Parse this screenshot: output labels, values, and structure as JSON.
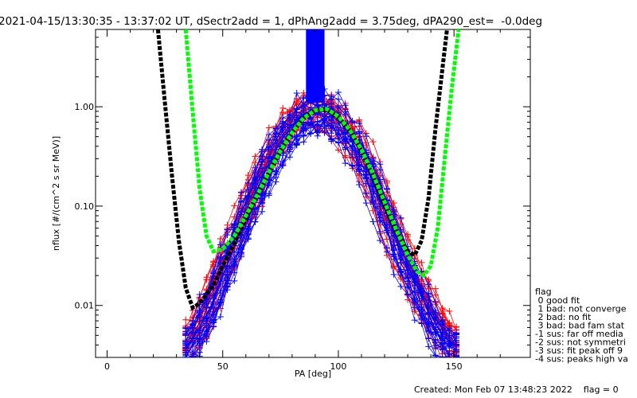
{
  "chart_data": {
    "type": "line",
    "title": "2021-04-15/13:30:35 - 13:37:02 UT, dSectr2add = 1, dPhAng2add = 3.75deg, dPA290_est=  -0.0deg",
    "xlabel": "PA [deg]",
    "ylabel": "nflux [#/(cm^2 s sr MeV)]",
    "xlim": [
      -5,
      183
    ],
    "ylim": [
      0.003,
      6
    ],
    "y_scale": "log",
    "x_ticks": [
      0,
      50,
      100,
      150
    ],
    "y_ticks": [
      {
        "value": 0.01,
        "label": "0.01"
      },
      {
        "value": 0.1,
        "label": "0.10"
      },
      {
        "value": 1.0,
        "label": "1.00"
      }
    ],
    "colors": {
      "red_scatter": "#ff0000",
      "blue_scatter": "#0000ff",
      "black_fit": "#000000",
      "green_fit": "#00ff00"
    },
    "series": [
      {
        "color": "red",
        "kind": "measurements",
        "x": [
          35,
          40,
          45,
          50,
          55,
          60,
          65,
          70,
          75,
          80,
          85,
          90,
          95,
          100,
          105,
          110,
          115,
          120,
          125,
          130,
          135,
          140,
          145,
          150
        ],
        "y": [
          0.004,
          0.006,
          0.012,
          0.024,
          0.045,
          0.09,
          0.17,
          0.3,
          0.48,
          0.7,
          0.85,
          0.93,
          0.9,
          0.75,
          0.55,
          0.35,
          0.2,
          0.1,
          0.05,
          0.027,
          0.015,
          0.009,
          0.006,
          0.004
        ]
      },
      {
        "color": "blue",
        "kind": "measurements",
        "x": [
          35,
          40,
          45,
          50,
          55,
          60,
          65,
          70,
          75,
          80,
          85,
          90,
          95,
          100,
          105,
          110,
          115,
          120,
          125,
          130,
          135,
          140,
          145,
          150
        ],
        "y": [
          0.004,
          0.006,
          0.01,
          0.02,
          0.04,
          0.08,
          0.15,
          0.27,
          0.45,
          0.65,
          0.85,
          0.95,
          0.92,
          0.78,
          0.57,
          0.36,
          0.2,
          0.1,
          0.05,
          0.025,
          0.014,
          0.008,
          0.005,
          0.004
        ]
      },
      {
        "color": "black",
        "kind": "fit",
        "x": [
          22,
          25,
          28,
          31,
          34,
          37,
          40,
          43,
          46,
          50,
          55,
          60,
          65,
          70,
          75,
          80,
          85,
          90,
          95,
          100,
          105,
          110,
          115,
          120,
          125,
          130,
          133,
          136,
          139,
          142,
          145,
          147
        ],
        "y": [
          6.0,
          1.1,
          0.21,
          0.045,
          0.015,
          0.0095,
          0.0105,
          0.013,
          0.016,
          0.025,
          0.042,
          0.075,
          0.13,
          0.22,
          0.36,
          0.55,
          0.77,
          0.92,
          0.93,
          0.78,
          0.57,
          0.36,
          0.2,
          0.1,
          0.055,
          0.035,
          0.032,
          0.045,
          0.12,
          0.6,
          2.4,
          6.0
        ]
      },
      {
        "color": "green",
        "kind": "fit",
        "x": [
          34,
          37,
          40,
          43,
          46,
          50,
          55,
          60,
          65,
          70,
          75,
          80,
          85,
          90,
          95,
          100,
          105,
          110,
          115,
          120,
          125,
          130,
          134,
          137,
          140,
          143,
          146,
          149,
          152
        ],
        "y": [
          6.0,
          0.9,
          0.15,
          0.05,
          0.035,
          0.037,
          0.05,
          0.08,
          0.13,
          0.22,
          0.36,
          0.55,
          0.77,
          0.92,
          0.95,
          0.8,
          0.58,
          0.37,
          0.21,
          0.11,
          0.058,
          0.032,
          0.022,
          0.02,
          0.025,
          0.06,
          0.3,
          1.5,
          6.0
        ]
      },
      {
        "color": "blue",
        "kind": "vertical-band",
        "x_range": [
          86,
          94
        ],
        "y_range": [
          1.1,
          6.0
        ]
      }
    ],
    "legend": {
      "placement": "right",
      "title": "flag",
      "entries": [
        " 0 good fit",
        " 1 bad: not converge",
        " 2 bad: no fit",
        " 3 bad: bad fam stat",
        "-1 sus: far off media",
        "-2 sus: not symmetri",
        "-3 sus: fit peak off 9",
        "-4 sus: peaks high va"
      ]
    },
    "footer": "Created: Mon Feb 07 13:48:23 2022    flag = 0"
  }
}
